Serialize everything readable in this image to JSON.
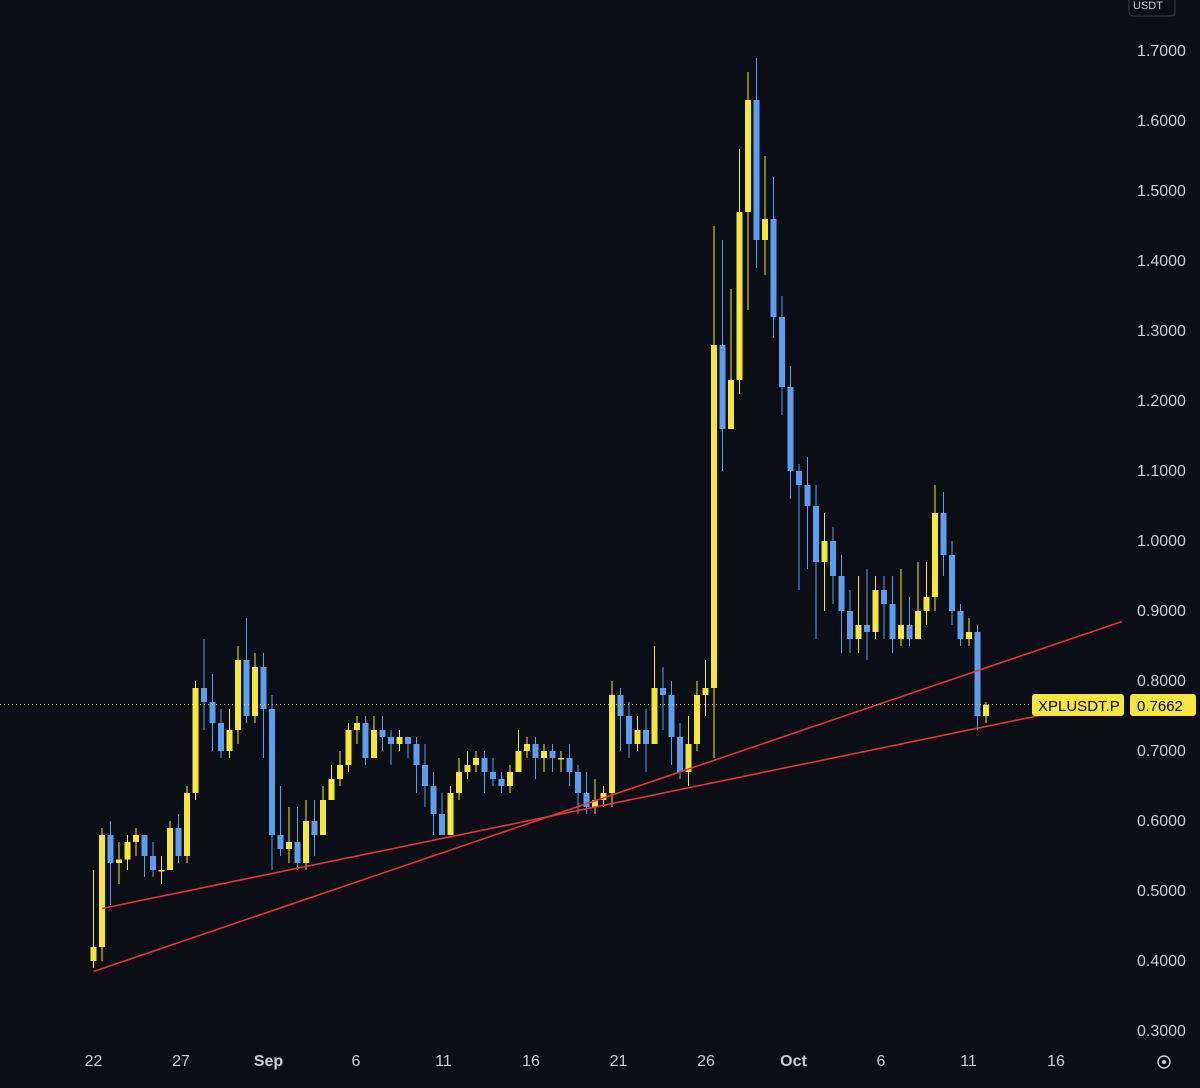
{
  "currency": "USDT",
  "symbol_tag": "XPLUSDT.P",
  "last_price_label": "0.7662",
  "colors": {
    "background": "#0c0e15",
    "up": "#f5e63d",
    "down": "#5e9cec",
    "trendline": "#e0363c",
    "price_tag": "#f5e63d"
  },
  "chart_data": {
    "type": "candlestick",
    "ylim": [
      0.28,
      1.72
    ],
    "y_ticks": [
      "0.3000",
      "0.4000",
      "0.5000",
      "0.6000",
      "0.7000",
      "0.8000",
      "0.9000",
      "1.0000",
      "1.1000",
      "1.2000",
      "1.3000",
      "1.4000",
      "1.5000",
      "1.6000",
      "1.7000"
    ],
    "x_ticks": [
      {
        "label": "22",
        "day": -9,
        "bold": false
      },
      {
        "label": "27",
        "day": -4,
        "bold": false
      },
      {
        "label": "Sep",
        "day": 1,
        "bold": true
      },
      {
        "label": "6",
        "day": 6,
        "bold": false
      },
      {
        "label": "11",
        "day": 11,
        "bold": false
      },
      {
        "label": "16",
        "day": 16,
        "bold": false
      },
      {
        "label": "21",
        "day": 21,
        "bold": false
      },
      {
        "label": "26",
        "day": 26,
        "bold": false
      },
      {
        "label": "Oct",
        "day": 31,
        "bold": true
      },
      {
        "label": "6",
        "day": 36,
        "bold": false
      },
      {
        "label": "11",
        "day": 41,
        "bold": false
      },
      {
        "label": "16",
        "day": 46,
        "bold": false
      }
    ],
    "last_price": 0.7662,
    "candles": [
      [
        0.4,
        0.42,
        0.53,
        0.39
      ],
      [
        0.42,
        0.58,
        0.59,
        0.4
      ],
      [
        0.58,
        0.54,
        0.6,
        0.48
      ],
      [
        0.54,
        0.545,
        0.57,
        0.51
      ],
      [
        0.545,
        0.57,
        0.58,
        0.53
      ],
      [
        0.57,
        0.58,
        0.59,
        0.55
      ],
      [
        0.58,
        0.55,
        0.58,
        0.52
      ],
      [
        0.55,
        0.53,
        0.57,
        0.52
      ],
      [
        0.53,
        0.53,
        0.55,
        0.51
      ],
      [
        0.53,
        0.59,
        0.6,
        0.53
      ],
      [
        0.59,
        0.55,
        0.61,
        0.54
      ],
      [
        0.55,
        0.64,
        0.65,
        0.54
      ],
      [
        0.64,
        0.79,
        0.8,
        0.63
      ],
      [
        0.79,
        0.77,
        0.86,
        0.73
      ],
      [
        0.77,
        0.74,
        0.81,
        0.7
      ],
      [
        0.74,
        0.7,
        0.76,
        0.69
      ],
      [
        0.7,
        0.73,
        0.76,
        0.69
      ],
      [
        0.73,
        0.83,
        0.85,
        0.71
      ],
      [
        0.83,
        0.75,
        0.89,
        0.74
      ],
      [
        0.75,
        0.82,
        0.84,
        0.74
      ],
      [
        0.82,
        0.76,
        0.84,
        0.69
      ],
      [
        0.76,
        0.58,
        0.78,
        0.53
      ],
      [
        0.58,
        0.56,
        0.65,
        0.55
      ],
      [
        0.56,
        0.57,
        0.62,
        0.54
      ],
      [
        0.57,
        0.54,
        0.62,
        0.53
      ],
      [
        0.54,
        0.6,
        0.63,
        0.53
      ],
      [
        0.6,
        0.58,
        0.63,
        0.55
      ],
      [
        0.58,
        0.63,
        0.65,
        0.58
      ],
      [
        0.63,
        0.66,
        0.68,
        0.63
      ],
      [
        0.66,
        0.68,
        0.7,
        0.65
      ],
      [
        0.68,
        0.73,
        0.74,
        0.67
      ],
      [
        0.73,
        0.74,
        0.75,
        0.71
      ],
      [
        0.74,
        0.69,
        0.75,
        0.68
      ],
      [
        0.69,
        0.73,
        0.75,
        0.7
      ],
      [
        0.73,
        0.72,
        0.75,
        0.7
      ],
      [
        0.72,
        0.71,
        0.73,
        0.68
      ],
      [
        0.71,
        0.72,
        0.73,
        0.7
      ],
      [
        0.72,
        0.71,
        0.72,
        0.69
      ],
      [
        0.71,
        0.68,
        0.72,
        0.64
      ],
      [
        0.68,
        0.65,
        0.71,
        0.62
      ],
      [
        0.65,
        0.61,
        0.67,
        0.58
      ],
      [
        0.61,
        0.58,
        0.64,
        0.58
      ],
      [
        0.58,
        0.64,
        0.65,
        0.58
      ],
      [
        0.64,
        0.67,
        0.69,
        0.63
      ],
      [
        0.67,
        0.68,
        0.7,
        0.66
      ],
      [
        0.68,
        0.69,
        0.7,
        0.67
      ],
      [
        0.69,
        0.67,
        0.7,
        0.64
      ],
      [
        0.67,
        0.66,
        0.69,
        0.65
      ],
      [
        0.66,
        0.65,
        0.67,
        0.64
      ],
      [
        0.65,
        0.67,
        0.68,
        0.64
      ],
      [
        0.67,
        0.7,
        0.73,
        0.67
      ],
      [
        0.7,
        0.71,
        0.72,
        0.69
      ],
      [
        0.71,
        0.69,
        0.72,
        0.66
      ],
      [
        0.69,
        0.7,
        0.71,
        0.67
      ],
      [
        0.7,
        0.69,
        0.71,
        0.67
      ],
      [
        0.69,
        0.69,
        0.7,
        0.67
      ],
      [
        0.69,
        0.67,
        0.71,
        0.65
      ],
      [
        0.67,
        0.64,
        0.68,
        0.61
      ],
      [
        0.64,
        0.62,
        0.67,
        0.61
      ],
      [
        0.62,
        0.63,
        0.66,
        0.61
      ],
      [
        0.63,
        0.64,
        0.65,
        0.62
      ],
      [
        0.64,
        0.78,
        0.8,
        0.62
      ],
      [
        0.78,
        0.75,
        0.79,
        0.7
      ],
      [
        0.75,
        0.71,
        0.77,
        0.69
      ],
      [
        0.71,
        0.73,
        0.75,
        0.7
      ],
      [
        0.73,
        0.71,
        0.76,
        0.67
      ],
      [
        0.71,
        0.79,
        0.85,
        0.71
      ],
      [
        0.79,
        0.78,
        0.82,
        0.73
      ],
      [
        0.78,
        0.72,
        0.8,
        0.68
      ],
      [
        0.72,
        0.67,
        0.74,
        0.66
      ],
      [
        0.67,
        0.71,
        0.75,
        0.65
      ],
      [
        0.71,
        0.78,
        0.8,
        0.7
      ],
      [
        0.78,
        0.79,
        0.83,
        0.75
      ],
      [
        0.79,
        1.28,
        1.45,
        0.69
      ],
      [
        1.28,
        1.16,
        1.43,
        1.1
      ],
      [
        1.16,
        1.23,
        1.36,
        1.17
      ],
      [
        1.23,
        1.47,
        1.56,
        1.21
      ],
      [
        1.47,
        1.63,
        1.67,
        1.33
      ],
      [
        1.63,
        1.43,
        1.69,
        1.39
      ],
      [
        1.43,
        1.46,
        1.55,
        1.38
      ],
      [
        1.46,
        1.32,
        1.52,
        1.29
      ],
      [
        1.32,
        1.22,
        1.35,
        1.18
      ],
      [
        1.22,
        1.1,
        1.25,
        1.06
      ],
      [
        1.1,
        1.08,
        1.11,
        0.93
      ],
      [
        1.08,
        1.05,
        1.12,
        0.96
      ],
      [
        1.05,
        0.97,
        1.08,
        0.86
      ],
      [
        0.97,
        1.0,
        1.04,
        0.9
      ],
      [
        1.0,
        0.95,
        1.02,
        0.91
      ],
      [
        0.95,
        0.9,
        0.98,
        0.84
      ],
      [
        0.9,
        0.86,
        0.93,
        0.84
      ],
      [
        0.86,
        0.88,
        0.95,
        0.84
      ],
      [
        0.88,
        0.87,
        0.96,
        0.83
      ],
      [
        0.87,
        0.93,
        0.95,
        0.86
      ],
      [
        0.93,
        0.91,
        0.95,
        0.86
      ],
      [
        0.91,
        0.86,
        0.95,
        0.84
      ],
      [
        0.86,
        0.88,
        0.96,
        0.85
      ],
      [
        0.88,
        0.86,
        0.92,
        0.85
      ],
      [
        0.86,
        0.9,
        0.97,
        0.86
      ],
      [
        0.9,
        0.92,
        0.97,
        0.88
      ],
      [
        0.92,
        1.04,
        1.08,
        0.9
      ],
      [
        1.04,
        0.98,
        1.07,
        0.95
      ],
      [
        0.98,
        0.9,
        1.0,
        0.88
      ],
      [
        0.9,
        0.86,
        0.91,
        0.85
      ],
      [
        0.86,
        0.87,
        0.89,
        0.85
      ],
      [
        0.87,
        0.75,
        0.88,
        0.73
      ],
      [
        0.75,
        0.766,
        0.77,
        0.74
      ]
    ],
    "trendlines": [
      {
        "start": [
          1,
          0.475
        ],
        "end": [
          121,
          0.775
        ]
      },
      {
        "start": [
          0,
          0.385
        ],
        "end": [
          121,
          0.885
        ]
      }
    ]
  }
}
